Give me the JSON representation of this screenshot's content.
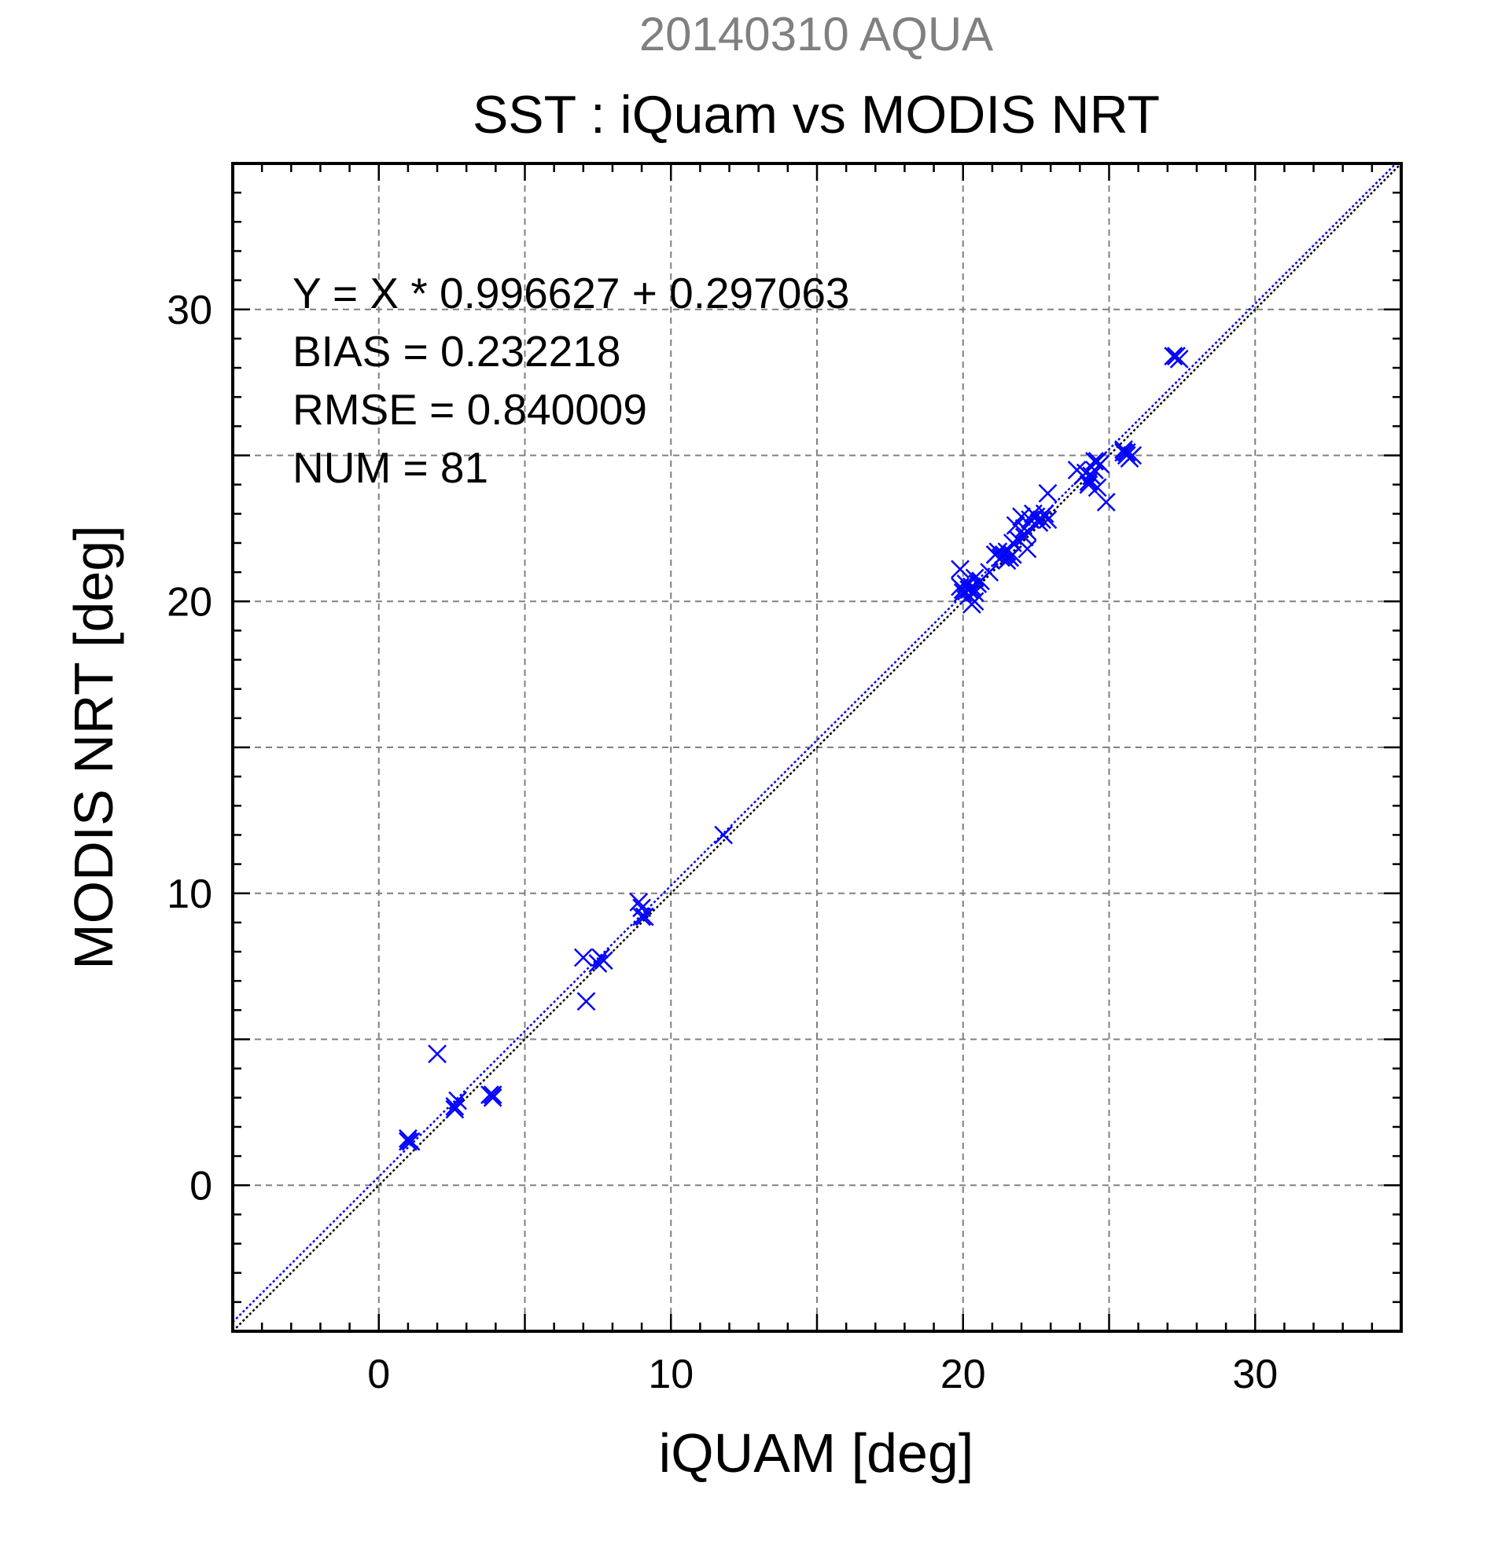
{
  "chart_data": {
    "type": "scatter",
    "supertitle": "20140310 AQUA",
    "title": "SST : iQuam vs MODIS NRT",
    "xlabel": "iQUAM [deg]",
    "ylabel": "MODIS NRT [deg]",
    "xlim": [
      -5,
      35
    ],
    "ylim": [
      -5,
      35
    ],
    "xticks": [
      0,
      10,
      20,
      30
    ],
    "yticks": [
      0,
      10,
      20,
      30
    ],
    "xtick_labels": [
      "0",
      "10",
      "20",
      "30"
    ],
    "ytick_labels": [
      "0",
      "10",
      "20",
      "30"
    ],
    "grid_step": 5,
    "minor_tick_step": 1,
    "grid": true,
    "marker": "x",
    "marker_color": "#0000ff",
    "fit": {
      "slope": 0.996627,
      "intercept": 0.297063,
      "color": "#0000ff",
      "style": "dotted"
    },
    "reference_line": {
      "slope": 1,
      "intercept": 0,
      "color": "#000000",
      "style": "dotted"
    },
    "stats": [
      "Y = X * 0.996627 + 0.297063",
      "BIAS = 0.232218",
      "RMSE = 0.840009",
      "NUM = 81"
    ],
    "series": [
      {
        "x": [
          1.0,
          1.1,
          1.0,
          2.0,
          2.6,
          2.7,
          2.6,
          3.8,
          3.9,
          3.9,
          7.0,
          7.1,
          7.5,
          7.7,
          7.6,
          8.9,
          9.0,
          9.0,
          9.1,
          11.8,
          19.9,
          19.9,
          20.0,
          20.0,
          20.1,
          20.2,
          20.3,
          20.4,
          20.4,
          20.5,
          20.6,
          20.9,
          20.3,
          20.4,
          21.1,
          21.2,
          21.3,
          21.4,
          21.5,
          21.6,
          21.7,
          21.5,
          21.6,
          21.7,
          21.8,
          21.9,
          22.0,
          22.1,
          22.2,
          22.3,
          22.4,
          22.5,
          22.6,
          22.7,
          22.8,
          22.9,
          22.1,
          22.2,
          22.9,
          23.9,
          24.1,
          24.2,
          24.3,
          24.4,
          24.5,
          24.6,
          24.3,
          24.5,
          24.7,
          24.9,
          25.5,
          25.6,
          25.7,
          25.6,
          25.5,
          25.8,
          27.2,
          27.3,
          27.4,
          24.6,
          20.2
        ],
        "y": [
          1.5,
          1.5,
          1.6,
          4.5,
          2.7,
          2.9,
          2.6,
          3.1,
          3.0,
          3.1,
          7.8,
          6.3,
          7.6,
          7.7,
          7.8,
          9.7,
          9.2,
          9.5,
          9.2,
          12.0,
          21.1,
          20.5,
          20.3,
          20.4,
          20.6,
          20.2,
          20.5,
          20.8,
          20.3,
          20.6,
          20.7,
          21.0,
          19.9,
          20.0,
          21.6,
          21.7,
          21.5,
          21.6,
          21.7,
          21.5,
          21.6,
          21.4,
          21.5,
          22.0,
          22.6,
          22.1,
          22.9,
          22.5,
          21.8,
          22.8,
          23.0,
          22.9,
          22.7,
          22.8,
          23.0,
          23.7,
          22.2,
          22.4,
          22.8,
          24.5,
          24.3,
          24.4,
          24.1,
          24.3,
          24.5,
          24.8,
          24.0,
          24.8,
          24.7,
          23.4,
          25.1,
          25.0,
          24.9,
          25.1,
          25.2,
          25.0,
          28.4,
          28.4,
          28.3,
          23.9,
          20.4
        ]
      }
    ]
  }
}
